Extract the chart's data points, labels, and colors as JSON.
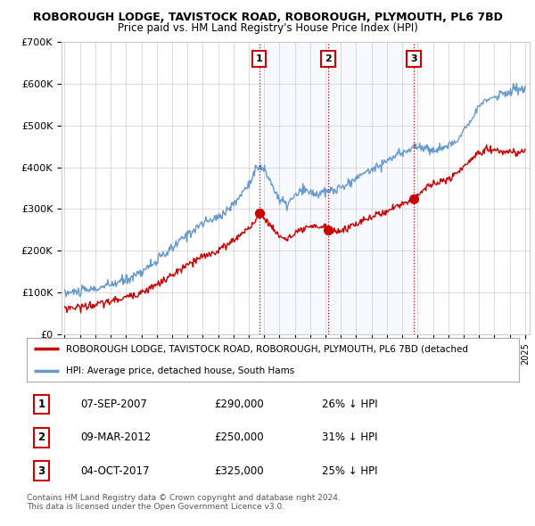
{
  "title": "ROBOROUGH LODGE, TAVISTOCK ROAD, ROBOROUGH, PLYMOUTH, PL6 7BD",
  "subtitle": "Price paid vs. HM Land Registry's House Price Index (HPI)",
  "ylabel_ticks": [
    "£0",
    "£100K",
    "£200K",
    "£300K",
    "£400K",
    "£500K",
    "£600K",
    "£700K"
  ],
  "ylim": [
    0,
    700000
  ],
  "xlim_start": 1994.8,
  "xlim_end": 2025.3,
  "legend_line1": "ROBOROUGH LODGE, TAVISTOCK ROAD, ROBOROUGH, PLYMOUTH, PL6 7BD (detached",
  "legend_line2": "HPI: Average price, detached house, South Hams",
  "line_color_property": "#cc0000",
  "line_color_hpi": "#6699cc",
  "shade_color": "#ddeeff",
  "transactions": [
    {
      "label": "1",
      "date_num": 2007.68,
      "price": 290000
    },
    {
      "label": "2",
      "date_num": 2012.18,
      "price": 250000
    },
    {
      "label": "3",
      "date_num": 2017.75,
      "price": 325000
    }
  ],
  "table_rows": [
    {
      "num": "1",
      "date": "07-SEP-2007",
      "price": "£290,000",
      "pct": "26% ↓ HPI"
    },
    {
      "num": "2",
      "date": "09-MAR-2012",
      "price": "£250,000",
      "pct": "31% ↓ HPI"
    },
    {
      "num": "3",
      "date": "04-OCT-2017",
      "price": "£325,000",
      "pct": "25% ↓ HPI"
    }
  ],
  "footnote": "Contains HM Land Registry data © Crown copyright and database right 2024.\nThis data is licensed under the Open Government Licence v3.0.",
  "background_color": "#ffffff",
  "grid_color": "#cccccc"
}
